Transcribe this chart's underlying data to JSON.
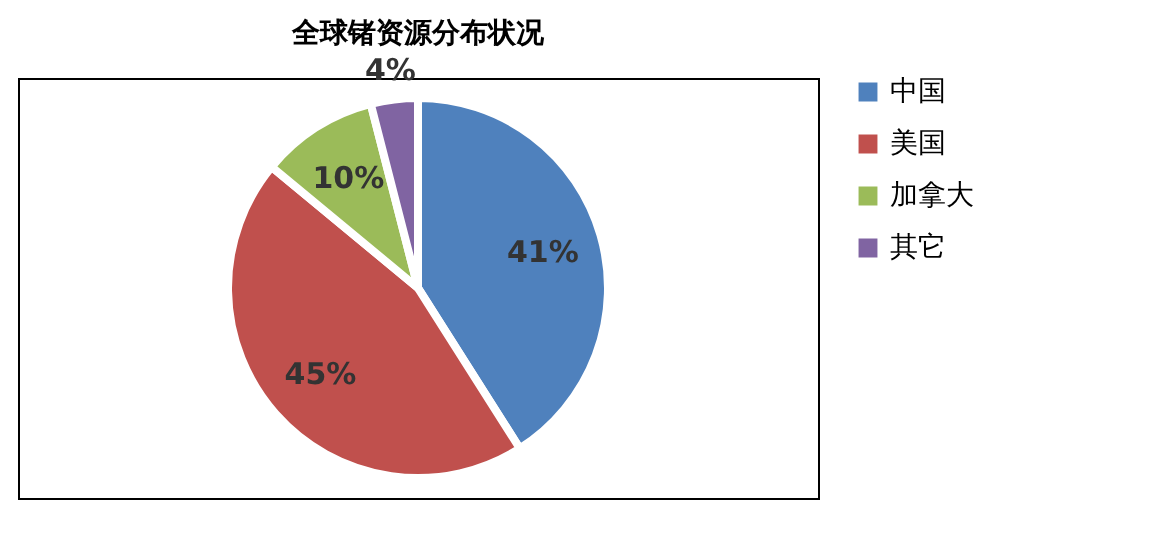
{
  "chart_data": {
    "type": "pie",
    "title": "全球锗资源分布状况",
    "categories": [
      "中国",
      "美国",
      "加拿大",
      "其它"
    ],
    "values": [
      41,
      45,
      10,
      4
    ],
    "colors": [
      "#4f81bd",
      "#c0504d",
      "#9bbb59",
      "#8064a2"
    ],
    "value_labels": [
      "41%",
      "45%",
      "10%",
      "4%"
    ],
    "legend": "right"
  }
}
